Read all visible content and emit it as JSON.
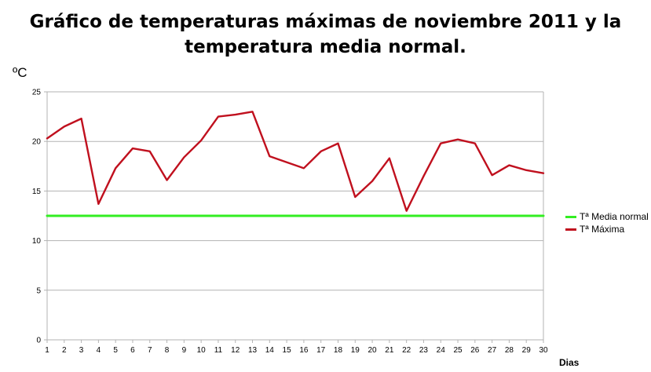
{
  "chart_data": {
    "type": "line",
    "title": "Gráfico de temperaturas máximas de noviembre 2011 y la temperatura media normal.",
    "title_lines": [
      "Gráfico de temperaturas máximas de noviembre 2011 y la",
      "temperatura media normal."
    ],
    "ylabel": "ºC",
    "xlabel": "Dias",
    "ylim": [
      0,
      25
    ],
    "yticks": [
      0,
      5,
      10,
      15,
      20,
      25
    ],
    "grid": true,
    "legend_position": "right",
    "x": [
      1,
      2,
      3,
      4,
      5,
      6,
      7,
      8,
      9,
      10,
      11,
      12,
      13,
      14,
      15,
      16,
      17,
      18,
      19,
      20,
      21,
      22,
      23,
      24,
      25,
      26,
      27,
      28,
      29,
      30
    ],
    "series": [
      {
        "name": "Tª Media normal",
        "color": "#33ee22",
        "values": [
          12.5,
          12.5,
          12.5,
          12.5,
          12.5,
          12.5,
          12.5,
          12.5,
          12.5,
          12.5,
          12.5,
          12.5,
          12.5,
          12.5,
          12.5,
          12.5,
          12.5,
          12.5,
          12.5,
          12.5,
          12.5,
          12.5,
          12.5,
          12.5,
          12.5,
          12.5,
          12.5,
          12.5,
          12.5,
          12.5
        ]
      },
      {
        "name": "Tª Máxima",
        "color": "#c0101e",
        "values": [
          20.3,
          21.5,
          22.3,
          13.7,
          17.3,
          19.3,
          19.0,
          16.1,
          18.4,
          20.1,
          22.5,
          22.7,
          23.0,
          18.5,
          17.9,
          17.3,
          19.0,
          19.8,
          14.4,
          16.0,
          18.3,
          13.0,
          16.5,
          19.8,
          20.2,
          19.8,
          16.6,
          17.6,
          17.1,
          16.8
        ]
      }
    ]
  }
}
